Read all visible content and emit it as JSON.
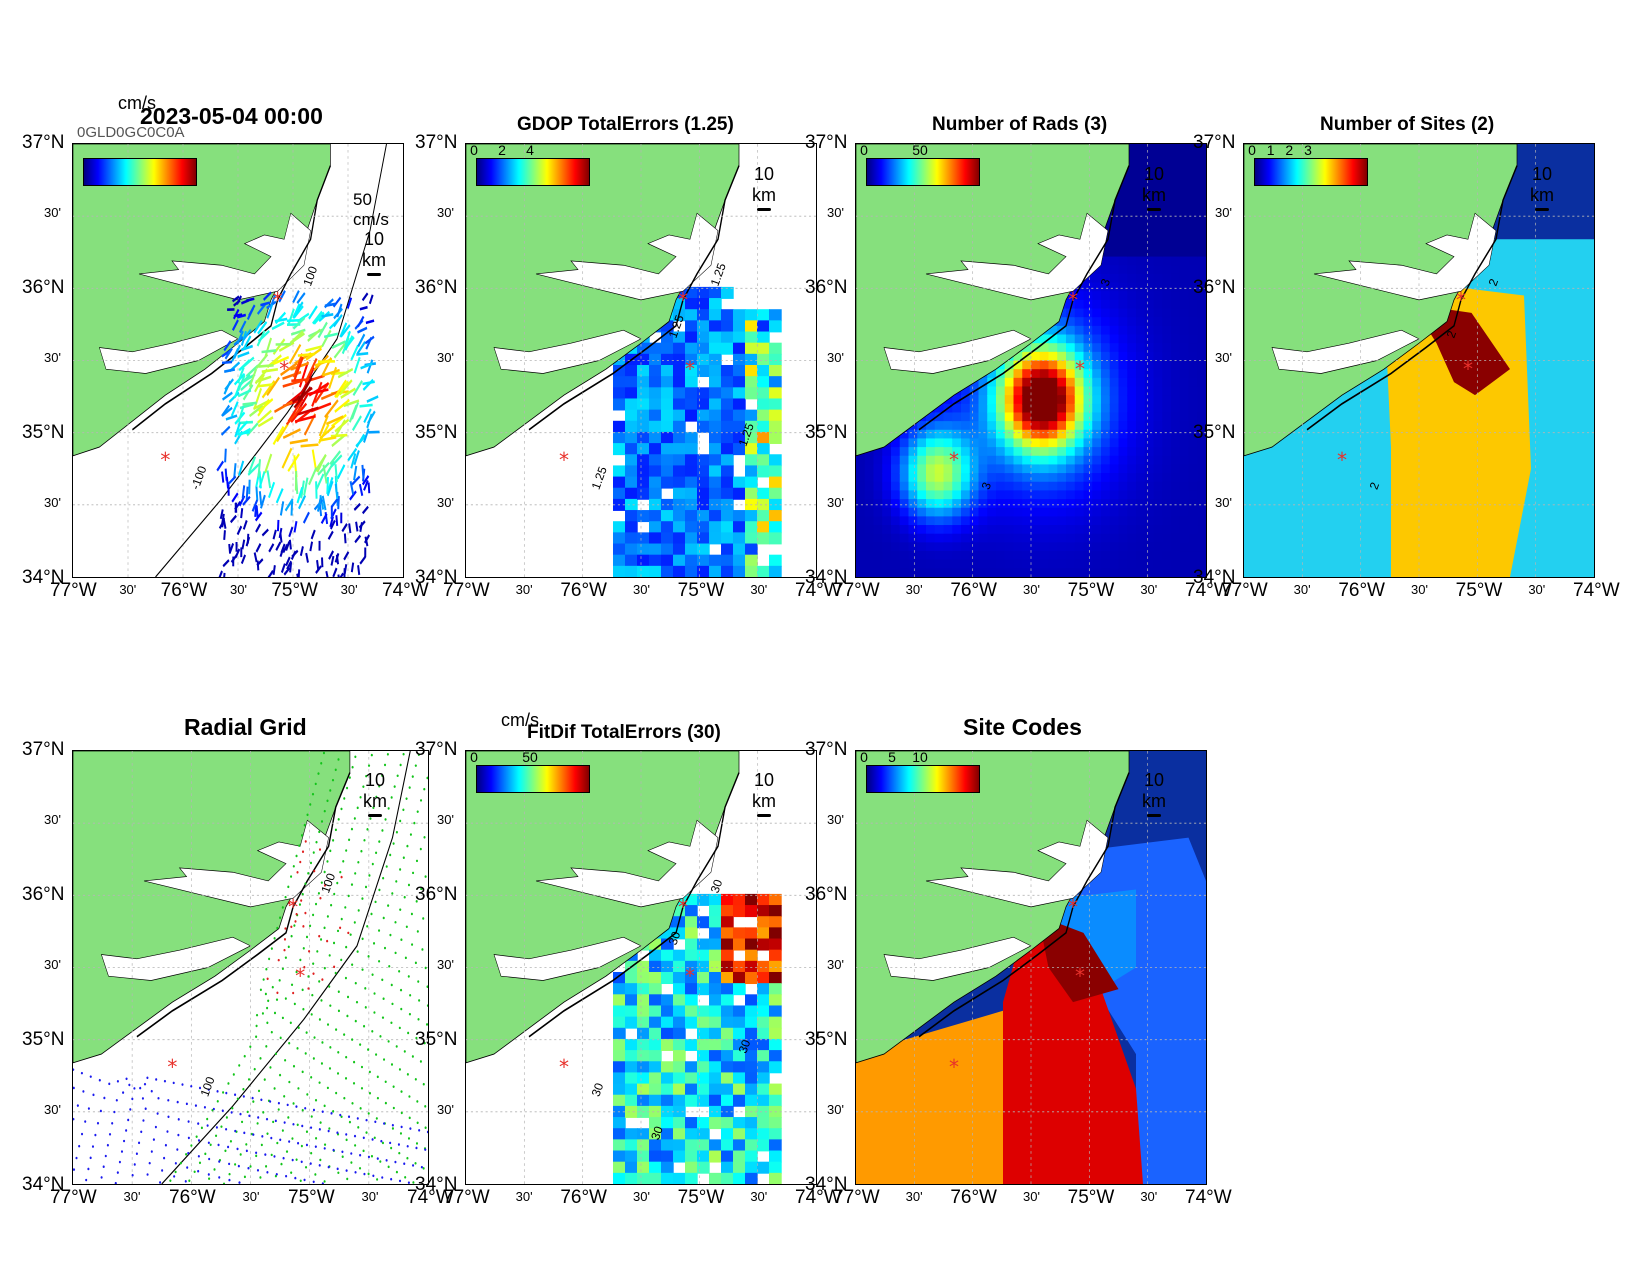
{
  "lat_labels": [
    "37°N",
    "30'",
    "36°N",
    "30'",
    "35°N",
    "30'",
    "34°N"
  ],
  "lon_labels": [
    "77°W",
    "30'",
    "76°W",
    "30'",
    "75°W",
    "30'",
    "74°W"
  ],
  "colors": {
    "land": "#86e07d",
    "coast": "#000000",
    "site_marker": "#e8312b",
    "grid": "#b5b5b5"
  },
  "panels": {
    "totals": {
      "title": "2023-05-04 00:00",
      "unit": "cm/s",
      "overlap_text": "0GLD0GC0C0A",
      "ref_vector": "50 cm/s",
      "scale": "10 km",
      "contour_labels": [
        "100",
        "-100"
      ]
    },
    "gdop": {
      "title": "GDOP TotalErrors (1.25)",
      "colorbar_ticks": [
        "0",
        "2",
        "4"
      ],
      "scale": "10 km",
      "contour_labels": [
        "1.25",
        "1.25",
        "1.25",
        "1.25"
      ]
    },
    "rads": {
      "title": "Number of Rads (3)",
      "colorbar_ticks": [
        "0",
        "50"
      ],
      "scale": "10 km",
      "contour_labels": [
        "3",
        "3"
      ]
    },
    "sites": {
      "title": "Number of Sites (2)",
      "colorbar_ticks": [
        "0",
        "1",
        "2",
        "3"
      ],
      "scale": "10 km",
      "contour_labels": [
        "2",
        "2",
        "2"
      ]
    },
    "radial": {
      "title": "Radial Grid",
      "scale": "10 km",
      "contour_labels": [
        "100",
        "100"
      ]
    },
    "fitdif": {
      "title": "FitDif TotalErrors (30)",
      "unit": "cm/s",
      "colorbar_ticks": [
        "0",
        "50"
      ],
      "scale": "10 km",
      "contour_labels": [
        "30",
        "30",
        "30",
        "30",
        "30"
      ]
    },
    "codes": {
      "title": "Site Codes",
      "colorbar_ticks": [
        "0",
        "5",
        "10"
      ],
      "scale": "10 km"
    }
  }
}
